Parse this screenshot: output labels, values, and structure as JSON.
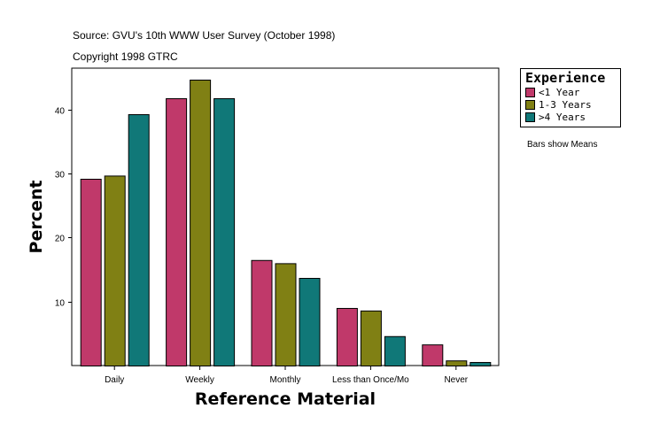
{
  "header": {
    "source": "Source: GVU's 10th WWW User Survey (October 1998)",
    "copyright": "Copyright 1998 GTRC"
  },
  "note": "Bars show Means",
  "chart_data": {
    "type": "bar",
    "xlabel": "Reference Material",
    "ylabel": "Percent",
    "categories": [
      "Daily",
      "Weekly",
      "Monthly",
      "Less than Once/Mo",
      "Never"
    ],
    "ylim": [
      0,
      46.5
    ],
    "yticks": [
      10,
      20,
      30,
      40
    ],
    "grid": false,
    "legend": {
      "title": "Experience",
      "placement": "right"
    },
    "series": [
      {
        "name": "<1 Year",
        "color": "#c0396a",
        "values": [
          29.2,
          41.8,
          16.5,
          9.0,
          3.3
        ]
      },
      {
        "name": "1-3 Years",
        "color": "#808014",
        "values": [
          29.7,
          44.7,
          16.0,
          8.6,
          0.8
        ]
      },
      {
        "name": ">4 Years",
        "color": "#107878",
        "values": [
          39.3,
          41.8,
          13.7,
          4.6,
          0.55
        ]
      }
    ]
  }
}
